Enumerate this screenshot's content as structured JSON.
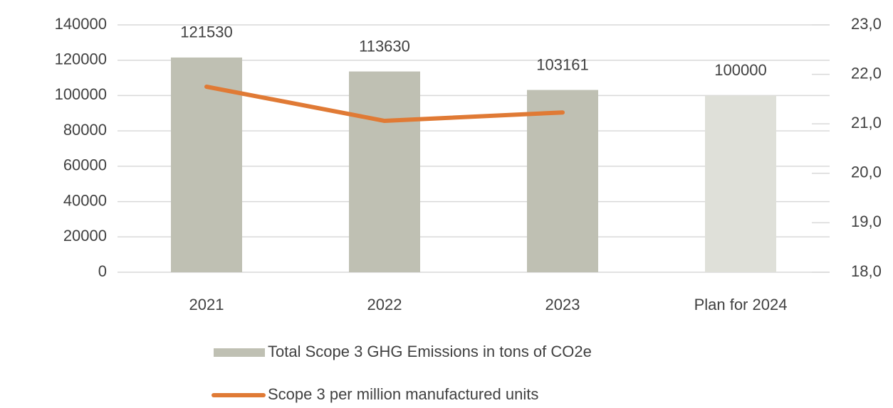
{
  "chart_data": {
    "type": "bar",
    "categories": [
      "2021",
      "2022",
      "2023",
      "Plan for 2024"
    ],
    "series": [
      {
        "name": "Total Scope 3 GHG Emissions  in tons of CO2e",
        "type": "bar",
        "color": "#bfc0b3",
        "colors": [
          "#bfc0b3",
          "#bfc0b3",
          "#bfc0b3",
          "#dfe0d9"
        ],
        "values": [
          121530,
          113630,
          103161,
          100000
        ]
      },
      {
        "name": "Scope 3 per million manufactured units",
        "type": "line",
        "axis": "y2",
        "color": "#e07a35",
        "values": [
          21.75,
          21.06,
          21.23,
          null
        ]
      }
    ],
    "ylim": [
      0,
      140000
    ],
    "yticks": [
      0,
      20000,
      40000,
      60000,
      80000,
      100000,
      120000,
      140000
    ],
    "y2lim": [
      18,
      23
    ],
    "y2ticks": [
      {
        "value": 18,
        "label": "18,0"
      },
      {
        "value": 19,
        "label": "19,0"
      },
      {
        "value": 20,
        "label": "20,0"
      },
      {
        "value": 21,
        "label": "21,0"
      },
      {
        "value": 22,
        "label": "22,0"
      },
      {
        "value": 23,
        "label": "23,0"
      }
    ],
    "grid": true,
    "legend": "bottom"
  }
}
